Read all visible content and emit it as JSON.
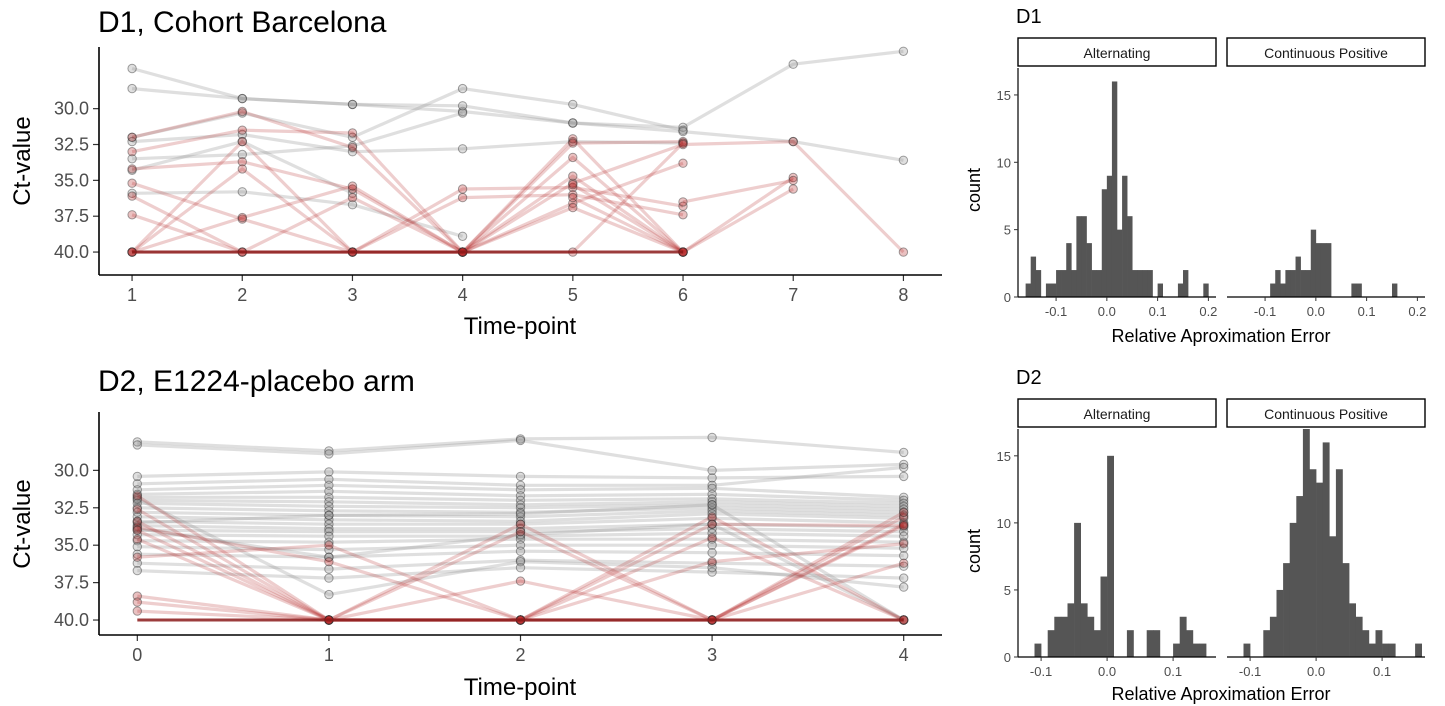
{
  "chart_data": [
    {
      "type": "line",
      "title": "D1, Cohort Barcelona",
      "xlabel": "Time-point",
      "ylabel": "Ct-value",
      "x": [
        1,
        2,
        3,
        4,
        5,
        6,
        7,
        8
      ],
      "xlim": [
        0.7,
        8.35
      ],
      "ylim": [
        25.7,
        41.6
      ],
      "y_reversed": true,
      "yticks": [
        "30.0",
        "32.5",
        "35.0",
        "37.5",
        "40.0"
      ],
      "ytick_values": [
        30,
        32.5,
        35,
        37.5,
        40
      ],
      "colors": {
        "negative_lines": "#b22222",
        "positive_lines": "#8c8c8c",
        "baseline": "#8b1a1a"
      },
      "series": [
        {
          "group": "positive",
          "x": [
            1,
            2,
            3,
            4,
            5,
            6,
            7,
            8
          ],
          "values": [
            27.2,
            29.3,
            29.7,
            30.2,
            31.0,
            31.3,
            26.9,
            26.0
          ]
        },
        {
          "group": "positive",
          "x": [
            1,
            2,
            3,
            4,
            5,
            6,
            7,
            8
          ],
          "values": [
            28.6,
            29.3,
            29.7,
            29.8,
            31.0,
            31.6,
            32.3,
            33.6
          ]
        },
        {
          "group": "positive",
          "x": [
            1,
            2,
            3,
            4,
            5,
            6
          ],
          "values": [
            32.0,
            30.3,
            32.0,
            28.6,
            29.7,
            31.5
          ]
        },
        {
          "group": "positive",
          "x": [
            1,
            2,
            3,
            4,
            5,
            6
          ],
          "values": [
            32.3,
            31.8,
            33.0,
            32.8,
            32.3,
            32.4
          ]
        },
        {
          "group": "positive",
          "x": [
            1,
            2,
            3,
            4
          ],
          "values": [
            33.5,
            33.2,
            32.6,
            30.3
          ]
        },
        {
          "group": "positive",
          "x": [
            1,
            2,
            3,
            4
          ],
          "values": [
            35.9,
            35.8,
            36.7,
            38.9
          ]
        },
        {
          "group": "positive",
          "x": [
            1,
            2,
            3
          ],
          "values": [
            34.3,
            32.3,
            35.9
          ]
        },
        {
          "group": "negative",
          "x": [
            1,
            2,
            3,
            4,
            5,
            6
          ],
          "values": [
            32.0,
            30.2,
            32.7,
            40.0,
            32.1,
            40.0
          ]
        },
        {
          "group": "negative",
          "x": [
            1,
            2,
            3,
            4,
            5,
            6
          ],
          "values": [
            33.0,
            31.5,
            31.7,
            40.0,
            32.4,
            32.3
          ]
        },
        {
          "group": "negative",
          "x": [
            1,
            2,
            3,
            4,
            5,
            6
          ],
          "values": [
            34.2,
            33.7,
            35.6,
            40.0,
            34.7,
            40.0
          ]
        },
        {
          "group": "negative",
          "x": [
            1,
            2,
            3,
            4,
            5,
            6
          ],
          "values": [
            35.2,
            37.7,
            40.0,
            35.6,
            35.5,
            36.8
          ]
        },
        {
          "group": "negative",
          "x": [
            1,
            2,
            3,
            4,
            5,
            6
          ],
          "values": [
            37.4,
            40.0,
            36.2,
            40.0,
            33.4,
            40.0
          ]
        },
        {
          "group": "negative",
          "x": [
            1,
            2,
            3,
            4,
            5,
            6
          ],
          "values": [
            40.0,
            32.3,
            40.0,
            36.2,
            36.0,
            37.4
          ]
        },
        {
          "group": "negative",
          "x": [
            1,
            2,
            3,
            4,
            5,
            6
          ],
          "values": [
            40.0,
            34.2,
            40.0,
            40.0,
            36.6,
            33.8
          ]
        },
        {
          "group": "negative",
          "x": [
            1,
            2,
            3,
            4,
            5,
            6
          ],
          "values": [
            40.0,
            37.6,
            35.4,
            40.0,
            40.0,
            32.4
          ]
        },
        {
          "group": "negative",
          "x": [
            1,
            2,
            3,
            4,
            5,
            6
          ],
          "values": [
            36.1,
            40.0,
            40.0,
            40.0,
            36.9,
            40.0
          ]
        },
        {
          "group": "negative",
          "x": [
            1,
            2,
            3,
            4,
            5,
            6,
            7,
            8
          ],
          "values": [
            40.0,
            40.0,
            40.0,
            40.0,
            35.2,
            32.5,
            32.3,
            40.0
          ]
        },
        {
          "group": "negative",
          "x": [
            5,
            6,
            7
          ],
          "values": [
            35.3,
            40.0,
            34.8
          ]
        },
        {
          "group": "negative",
          "x": [
            5,
            6,
            7
          ],
          "values": [
            36.2,
            40.0,
            35.6
          ]
        },
        {
          "group": "negative",
          "x": [
            6,
            7
          ],
          "values": [
            36.5,
            35.0
          ]
        }
      ]
    },
    {
      "type": "histogram",
      "title": "D1",
      "xlabel": "Relative Aproximation Error",
      "ylabel": "count",
      "facets": [
        "Alternating",
        "Continuous Positive"
      ],
      "bin_width": 0.01,
      "bin_starts": [
        -0.16,
        -0.15,
        -0.14,
        -0.13,
        -0.12,
        -0.11,
        -0.1,
        -0.09,
        -0.08,
        -0.07,
        -0.06,
        -0.05,
        -0.04,
        -0.03,
        -0.02,
        -0.01,
        0.0,
        0.01,
        0.02,
        0.03,
        0.04,
        0.05,
        0.06,
        0.07,
        0.08,
        0.09,
        0.1,
        0.11,
        0.12,
        0.13,
        0.14,
        0.15,
        0.16,
        0.17,
        0.18,
        0.19,
        0.2
      ],
      "xlim": [
        -0.175,
        0.215
      ],
      "xticks": [
        "-0.1",
        "0.0",
        "0.1",
        "0.2"
      ],
      "ylim": [
        0,
        17
      ],
      "yticks": [
        "0",
        "5",
        "10",
        "15"
      ],
      "series": [
        {
          "name": "Alternating",
          "values": [
            1,
            3,
            2,
            0,
            1,
            1,
            2,
            2,
            4,
            2,
            6,
            6,
            4,
            2,
            2,
            8,
            9,
            16,
            5,
            9,
            6,
            2,
            2,
            2,
            2,
            0,
            1,
            0,
            0,
            0,
            1,
            2,
            0,
            0,
            0,
            1,
            0
          ]
        },
        {
          "name": "Continuous Positive",
          "values": [
            0,
            0,
            0,
            0,
            0,
            0,
            0,
            1,
            2,
            1,
            2,
            2,
            3,
            2,
            2,
            5,
            4,
            4,
            4,
            0,
            0,
            0,
            0,
            1,
            1,
            0,
            0,
            0,
            0,
            0,
            0,
            1,
            0,
            0,
            0,
            0,
            0
          ]
        }
      ],
      "colors": {
        "bars": "#555555",
        "strip_border": "#000000"
      }
    },
    {
      "type": "line",
      "title": "D2, E1224-placebo arm",
      "xlabel": "Time-point",
      "ylabel": "Ct-value",
      "x": [
        0,
        1,
        2,
        3,
        4
      ],
      "xlim": [
        -0.2,
        4.2
      ],
      "ylim": [
        26.1,
        41.0
      ],
      "y_reversed": true,
      "yticks": [
        "30.0",
        "32.5",
        "35.0",
        "37.5",
        "40.0"
      ],
      "ytick_values": [
        30,
        32.5,
        35,
        37.5,
        40
      ],
      "colors": {
        "negative_lines": "#b22222",
        "positive_lines": "#8c8c8c",
        "baseline": "#8b1a1a"
      },
      "series": [
        {
          "group": "positive",
          "values": [
            28.1,
            28.7,
            27.9,
            27.8,
            28.8
          ]
        },
        {
          "group": "positive",
          "values": [
            28.3,
            28.9,
            28.0,
            30.0,
            29.6
          ]
        },
        {
          "group": "positive",
          "values": [
            30.4,
            30.1,
            30.4,
            30.5,
            30.4
          ]
        },
        {
          "group": "positive",
          "values": [
            30.9,
            30.6,
            31.0,
            31.0,
            29.8
          ]
        },
        {
          "group": "positive",
          "values": [
            31.3,
            31.0,
            31.3,
            31.2,
            31.8
          ]
        },
        {
          "group": "positive",
          "values": [
            31.6,
            31.4,
            31.7,
            31.6,
            32.0
          ]
        },
        {
          "group": "positive",
          "values": [
            31.8,
            31.8,
            32.0,
            31.9,
            32.2
          ]
        },
        {
          "group": "positive",
          "values": [
            32.0,
            32.1,
            32.3,
            32.1,
            32.4
          ]
        },
        {
          "group": "positive",
          "values": [
            32.2,
            32.4,
            32.5,
            32.3,
            32.6
          ]
        },
        {
          "group": "positive",
          "values": [
            32.5,
            32.7,
            32.8,
            32.5,
            32.8
          ]
        },
        {
          "group": "positive",
          "values": [
            32.8,
            33.0,
            33.1,
            32.7,
            33.0
          ]
        },
        {
          "group": "positive",
          "values": [
            33.1,
            33.3,
            33.4,
            32.9,
            33.2
          ]
        },
        {
          "group": "positive",
          "values": [
            33.4,
            33.6,
            33.6,
            33.2,
            33.5
          ]
        },
        {
          "group": "positive",
          "values": [
            33.7,
            33.9,
            33.9,
            33.6,
            33.8
          ]
        },
        {
          "group": "positive",
          "values": [
            34.0,
            34.1,
            34.1,
            33.9,
            34.1
          ]
        },
        {
          "group": "positive",
          "values": [
            34.3,
            34.4,
            34.4,
            34.2,
            34.4
          ]
        },
        {
          "group": "positive",
          "values": [
            34.7,
            34.8,
            34.6,
            34.6,
            34.8
          ]
        },
        {
          "group": "positive",
          "values": [
            35.1,
            35.3,
            35.0,
            35.0,
            35.2
          ]
        },
        {
          "group": "positive",
          "values": [
            35.6,
            35.8,
            35.4,
            35.5,
            35.7
          ]
        },
        {
          "group": "positive",
          "values": [
            36.2,
            36.6,
            36.0,
            36.2,
            36.4
          ]
        },
        {
          "group": "positive",
          "values": [
            36.7,
            37.2,
            36.5,
            36.8,
            37.2
          ]
        },
        {
          "group": "positive",
          "values": [
            31.9,
            38.3,
            36.1,
            36.5,
            37.8
          ]
        },
        {
          "group": "positive",
          "values": [
            33.5,
            33.0,
            32.9,
            32.3,
            40.0
          ]
        },
        {
          "group": "positive",
          "values": [
            33.9,
            35.8,
            34.3,
            33.6,
            40.0
          ]
        },
        {
          "group": "negative",
          "values": [
            31.7,
            40.0,
            40.0,
            33.6,
            33.7
          ]
        },
        {
          "group": "negative",
          "values": [
            32.6,
            40.0,
            33.6,
            40.0,
            33.1
          ]
        },
        {
          "group": "negative",
          "values": [
            33.4,
            40.0,
            40.0,
            33.1,
            40.0
          ]
        },
        {
          "group": "negative",
          "values": [
            33.8,
            36.1,
            40.0,
            40.0,
            33.6
          ]
        },
        {
          "group": "negative",
          "values": [
            34.0,
            40.0,
            34.1,
            40.0,
            40.0
          ]
        },
        {
          "group": "negative",
          "values": [
            34.6,
            40.0,
            40.0,
            36.1,
            34.9
          ]
        },
        {
          "group": "negative",
          "values": [
            35.8,
            35.0,
            40.0,
            40.0,
            33.7
          ]
        },
        {
          "group": "negative",
          "values": [
            38.4,
            40.0,
            37.4,
            40.0,
            36.2
          ]
        },
        {
          "group": "negative",
          "values": [
            38.8,
            40.0,
            40.0,
            34.5,
            40.0
          ]
        },
        {
          "group": "negative",
          "values": [
            39.4,
            40.0,
            40.0,
            40.0,
            32.8
          ]
        }
      ]
    },
    {
      "type": "histogram",
      "title": "D2",
      "xlabel": "Relative Aproximation Error",
      "ylabel": "count",
      "facets": [
        "Alternating",
        "Continuous Positive"
      ],
      "bin_width": 0.01,
      "bin_starts": [
        -0.12,
        -0.11,
        -0.1,
        -0.09,
        -0.08,
        -0.07,
        -0.06,
        -0.05,
        -0.04,
        -0.03,
        -0.02,
        -0.01,
        0.0,
        0.01,
        0.02,
        0.03,
        0.04,
        0.05,
        0.06,
        0.07,
        0.08,
        0.09,
        0.1,
        0.11,
        0.12,
        0.13,
        0.14,
        0.15
      ],
      "xlim": [
        -0.135,
        0.165
      ],
      "xticks": [
        "-0.1",
        "0.0",
        "0.1"
      ],
      "ylim": [
        0,
        17
      ],
      "yticks": [
        "0",
        "5",
        "10",
        "15"
      ],
      "series": [
        {
          "name": "Alternating",
          "values": [
            0,
            1,
            0,
            2,
            3,
            3,
            4,
            10,
            4,
            3,
            2,
            6,
            15,
            0,
            0,
            2,
            0,
            0,
            2,
            2,
            0,
            0,
            1,
            3,
            2,
            1,
            1,
            0
          ]
        },
        {
          "name": "Continuous Positive",
          "values": [
            0,
            1,
            0,
            0,
            2,
            3,
            5,
            7,
            10,
            12,
            17,
            14,
            13,
            16,
            9,
            14,
            7,
            4,
            3,
            2,
            1,
            2,
            1,
            1,
            0,
            0,
            0,
            1
          ]
        }
      ],
      "colors": {
        "bars": "#555555",
        "strip_border": "#000000"
      }
    }
  ]
}
